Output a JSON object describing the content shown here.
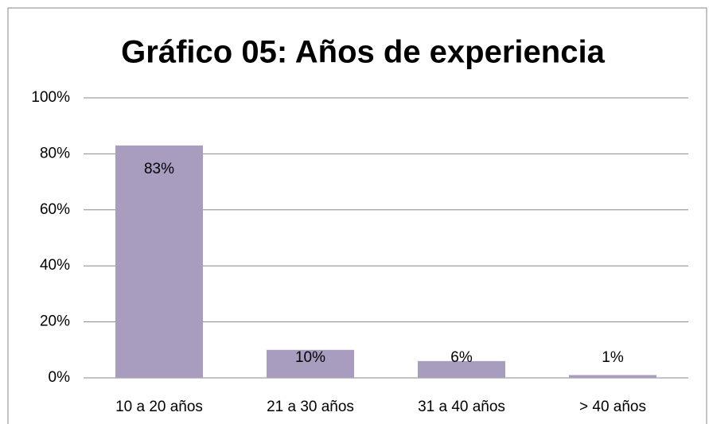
{
  "chart_data": {
    "type": "bar",
    "title": "Gráfico 05: Años de experiencia",
    "categories": [
      "10 a 20 años",
      "21 a 30 años",
      "31 a 40 años",
      "> 40 años"
    ],
    "values": [
      83,
      10,
      6,
      1
    ],
    "value_labels": [
      "83%",
      "10%",
      "6%",
      "1%"
    ],
    "color": "#a89dbf",
    "ylim": [
      0,
      100
    ],
    "yticks": [
      {
        "value": 0,
        "label": "0%"
      },
      {
        "value": 20,
        "label": "20%"
      },
      {
        "value": 40,
        "label": "40%"
      },
      {
        "value": 60,
        "label": "60%"
      },
      {
        "value": 80,
        "label": "80%"
      },
      {
        "value": 100,
        "label": "100%"
      }
    ],
    "grid": true
  }
}
